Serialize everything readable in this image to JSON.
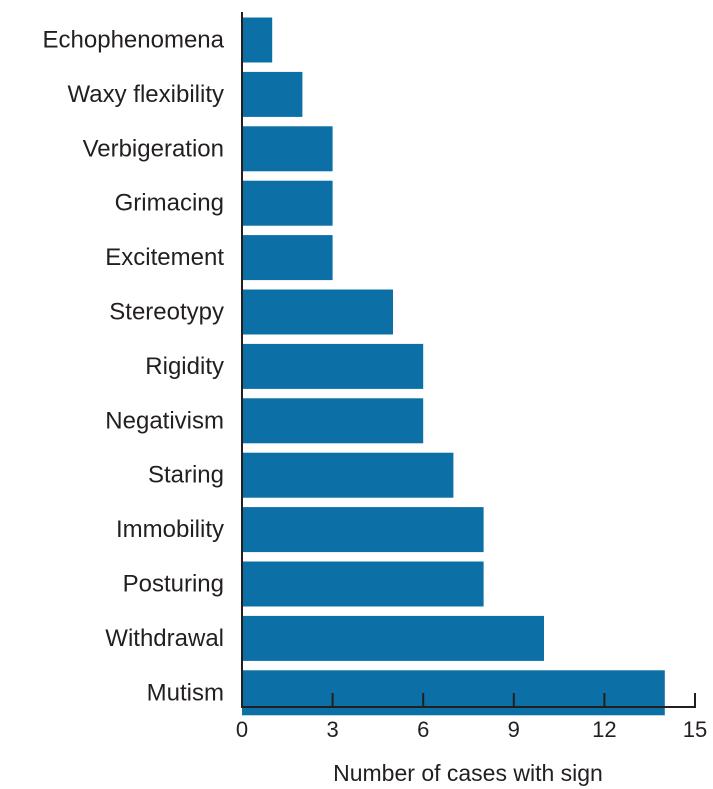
{
  "chart_data": {
    "type": "bar",
    "orientation": "horizontal",
    "categories": [
      "Echophenomena",
      "Waxy flexibility",
      "Verbigeration",
      "Grimacing",
      "Excitement",
      "Stereotypy",
      "Rigidity",
      "Negativism",
      "Staring",
      "Immobility",
      "Posturing",
      "Withdrawal",
      "Mutism"
    ],
    "values": [
      1,
      2,
      3,
      3,
      3,
      5,
      6,
      6,
      7,
      8,
      8,
      10,
      14
    ],
    "xlabel": "Number of cases with sign",
    "ylabel": "",
    "title": "",
    "xlim": [
      0,
      15
    ],
    "xticks": [
      0,
      3,
      6,
      9,
      12,
      15
    ],
    "grid": false,
    "colors": {
      "bar": "#0c6fa6",
      "axis": "#231f20",
      "text": "#231f20"
    }
  }
}
